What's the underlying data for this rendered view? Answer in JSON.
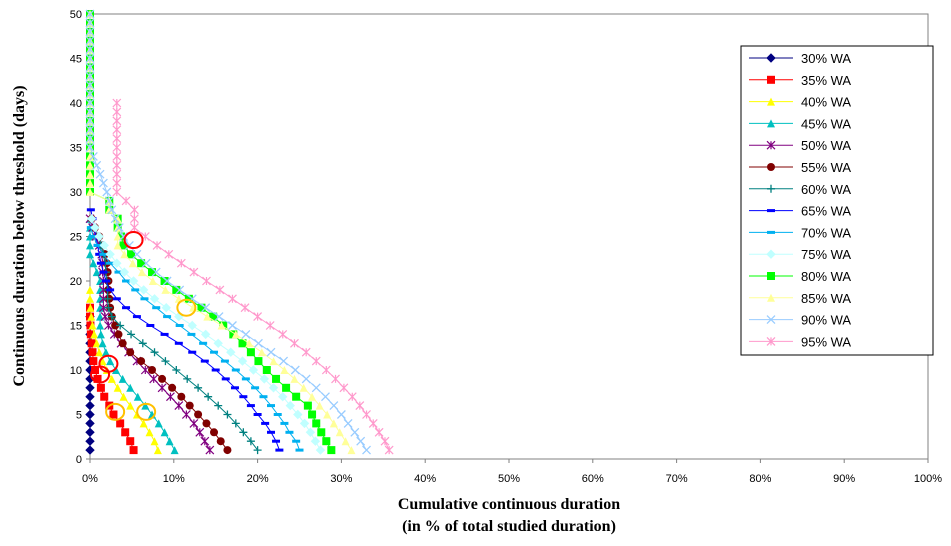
{
  "chart_data": {
    "type": "line",
    "title": "",
    "xlabel_line1": "Cumulative continuous duration",
    "xlabel_line2": "(in % of total studied duration)",
    "ylabel": "Continuous duration below threshold (days)",
    "xlim": [
      0,
      100
    ],
    "ylim": [
      0,
      50
    ],
    "x_ticks": [
      "0%",
      "10%",
      "20%",
      "30%",
      "40%",
      "50%",
      "60%",
      "70%",
      "80%",
      "90%",
      "100%"
    ],
    "y_ticks": [
      "0",
      "5",
      "10",
      "15",
      "20",
      "25",
      "30",
      "35",
      "40",
      "45",
      "50"
    ],
    "legend_position": "right",
    "grid": false,
    "series": [
      {
        "name": "30% WA",
        "color": "#000080",
        "marker": "diamond",
        "x": [
          0,
          0,
          0,
          0,
          0,
          0,
          0,
          0,
          0,
          0,
          0,
          0,
          0,
          0,
          0,
          0
        ],
        "y": [
          1,
          2,
          3,
          4,
          5,
          6,
          7,
          8,
          9,
          10,
          11,
          12,
          13,
          14,
          15,
          16
        ]
      },
      {
        "name": "35% WA",
        "color": "#ff0000",
        "marker": "square",
        "x": [
          5.2,
          4.8,
          4.2,
          3.6,
          2.8,
          2.3,
          1.7,
          1.3,
          0.9,
          0.6,
          0.4,
          0.3,
          0.2,
          0.1,
          0.05,
          0,
          0
        ],
        "y": [
          1,
          2,
          3,
          4,
          5,
          6,
          7,
          8,
          9,
          10,
          11,
          12,
          13,
          14,
          15,
          16,
          17
        ]
      },
      {
        "name": "40% WA",
        "color": "#ffff00",
        "marker": "triangle",
        "x": [
          8.1,
          7.7,
          7.1,
          6.4,
          5.6,
          4.8,
          4,
          3.3,
          2.6,
          2,
          1.5,
          1.1,
          0.8,
          0.5,
          0.3,
          0.15,
          0.05,
          0,
          0
        ],
        "y": [
          1,
          2,
          3,
          4,
          5,
          6,
          7,
          8,
          9,
          10,
          11,
          12,
          13,
          14,
          15,
          16,
          17,
          18,
          19
        ]
      },
      {
        "name": "45% WA",
        "color": "#00c0c0",
        "marker": "triangle",
        "x": [
          10.1,
          9.5,
          8.9,
          8.2,
          7.4,
          6.6,
          5.7,
          4.8,
          3.9,
          3.1,
          2.4,
          1.9,
          1.5,
          1.3,
          1.2,
          1.2,
          1.2,
          1.2,
          1.2,
          1.2,
          0.8,
          0.4,
          0,
          0,
          0,
          0,
          0
        ],
        "y": [
          1,
          2,
          3,
          4,
          5,
          6,
          7,
          8,
          9,
          10,
          11,
          12,
          13,
          14,
          15,
          16,
          17,
          18,
          19,
          20,
          21,
          22,
          23,
          24,
          25,
          26,
          27
        ]
      },
      {
        "name": "50% WA",
        "color": "#800080",
        "marker": "star",
        "x": [
          14.3,
          13.7,
          13.1,
          12.4,
          11.5,
          10.6,
          9.6,
          8.6,
          7.6,
          6.6,
          5.6,
          4.6,
          3.7,
          2.9,
          2.2,
          1.8,
          1.6,
          1.6,
          1.6,
          1.6,
          1.5,
          1.5,
          1.4,
          1.1,
          0.7,
          0.3,
          0
        ],
        "y": [
          1,
          2,
          3,
          4,
          5,
          6,
          7,
          8,
          9,
          10,
          11,
          12,
          13,
          14,
          15,
          16,
          17,
          18,
          19,
          20,
          21,
          22,
          23,
          24,
          25,
          26,
          27
        ]
      },
      {
        "name": "55% WA",
        "color": "#800000",
        "marker": "circle",
        "x": [
          16.4,
          15.6,
          14.8,
          13.9,
          12.9,
          11.9,
          10.9,
          9.8,
          8.6,
          7.4,
          6.1,
          4.8,
          3.9,
          3.4,
          3,
          2.6,
          2.4,
          2.3,
          2.2,
          2.2,
          2.1,
          2.0,
          1.8,
          1.5,
          1.1,
          0.6,
          0.2
        ],
        "y": [
          1,
          2,
          3,
          4,
          5,
          6,
          7,
          8,
          9,
          10,
          11,
          12,
          13,
          14,
          15,
          16,
          17,
          18,
          19,
          20,
          21,
          22,
          23,
          24,
          25,
          26,
          27
        ]
      },
      {
        "name": "60% WA",
        "color": "#008080",
        "marker": "plus",
        "x": [
          20,
          19.2,
          18.3,
          17.4,
          16.4,
          15.3,
          14.1,
          12.9,
          11.6,
          10.3,
          9,
          7.7,
          6.3,
          4.9,
          3.6,
          2.6,
          2.2,
          2.1,
          2.1,
          2,
          1.9,
          1.8,
          1.6,
          1.3,
          1.0,
          0.6
        ],
        "y": [
          1,
          2,
          3,
          4,
          5,
          6,
          7,
          8,
          9,
          10,
          11,
          12,
          13,
          14,
          15,
          16,
          17,
          18,
          19,
          20,
          21,
          22,
          23,
          24,
          25,
          26
        ]
      },
      {
        "name": "65% WA",
        "color": "#0000ff",
        "marker": "dash",
        "x": [
          22.6,
          22.2,
          21.6,
          20.9,
          20,
          19.2,
          18.3,
          17.3,
          16.2,
          15,
          13.7,
          12.2,
          10.6,
          8.9,
          7.2,
          5.6,
          4.3,
          3.2,
          2.4,
          1.9,
          1.6,
          1.3,
          1.1,
          0.9,
          0.7,
          0.5,
          0.3,
          0.1
        ],
        "y": [
          1,
          2,
          3,
          4,
          5,
          6,
          7,
          8,
          9,
          10,
          11,
          12,
          13,
          14,
          15,
          16,
          17,
          18,
          19,
          20,
          21,
          22,
          23,
          24,
          25,
          26,
          27,
          28
        ]
      },
      {
        "name": "70% WA",
        "color": "#00b0f0",
        "marker": "dash",
        "x": [
          25,
          24.6,
          23.8,
          23.2,
          22.4,
          21.6,
          20.7,
          19.7,
          18.6,
          17.4,
          16.1,
          14.8,
          13.5,
          12.1,
          10.7,
          9.2,
          7.9,
          6.5,
          5.4,
          4.3,
          3.4,
          2.4,
          1.6,
          0.9,
          0.4,
          0.1
        ],
        "y": [
          1,
          2,
          3,
          4,
          5,
          6,
          7,
          8,
          9,
          10,
          11,
          12,
          13,
          14,
          15,
          16,
          17,
          18,
          19,
          20,
          21,
          22,
          23,
          24,
          25,
          26
        ]
      },
      {
        "name": "75% WA",
        "color": "#c0ffff",
        "marker": "diamond",
        "x": [
          27.5,
          26.9,
          26.3,
          25.6,
          24.8,
          23.9,
          23,
          21.9,
          20.8,
          19.5,
          18.2,
          16.8,
          15.3,
          13.8,
          12.2,
          10.6,
          9.1,
          7.7,
          6.4,
          5.2,
          4.1,
          3.2,
          2.4,
          1.7,
          1.1,
          0.6,
          0.2
        ],
        "y": [
          1,
          2,
          3,
          4,
          5,
          6,
          7,
          8,
          9,
          10,
          11,
          12,
          13,
          14,
          15,
          16,
          17,
          18,
          19,
          20,
          21,
          22,
          23,
          24,
          25,
          26,
          27
        ]
      },
      {
        "name": "80% WA",
        "color": "#00ff00",
        "marker": "square",
        "x": [
          28.8,
          28.2,
          27.6,
          27,
          26.5,
          26,
          24.6,
          23.4,
          22.2,
          21.1,
          20.1,
          19.2,
          18.2,
          17.1,
          15.9,
          14.7,
          13.3,
          11.8,
          10.3,
          8.9,
          7.4,
          6.1,
          4.9,
          4,
          3.7,
          3.3,
          3.3,
          2.3,
          2.3,
          0,
          0,
          0,
          0,
          0,
          0,
          0,
          0,
          0,
          0,
          0,
          0,
          0,
          0,
          0,
          0,
          0,
          0,
          0,
          0,
          0
        ],
        "y": [
          1,
          2,
          3,
          4,
          5,
          6,
          7,
          8,
          9,
          10,
          11,
          12,
          13,
          14,
          15,
          16,
          17,
          18,
          19,
          20,
          21,
          22,
          23,
          24,
          25,
          26,
          27,
          28,
          29,
          30,
          31,
          32,
          33,
          34,
          35,
          36,
          37,
          38,
          39,
          40,
          41,
          42,
          43,
          44,
          45,
          46,
          47,
          48,
          49,
          50
        ]
      },
      {
        "name": "85% WA",
        "color": "#ffff99",
        "marker": "triangle",
        "x": [
          31.2,
          30.5,
          29.8,
          29.1,
          28.3,
          27.4,
          26.5,
          25.5,
          24.4,
          23.2,
          21.9,
          20.5,
          19,
          17.4,
          15.7,
          14,
          12.3,
          10.6,
          9,
          7.5,
          6.2,
          5.1,
          4.1,
          3.3,
          3.3,
          3.3,
          3.3,
          2.3,
          2.3,
          0,
          0,
          0,
          0,
          0,
          0,
          0,
          0,
          0,
          0,
          0,
          0,
          0,
          0,
          0,
          0,
          0,
          0,
          0,
          0,
          0
        ],
        "y": [
          1,
          2,
          3,
          4,
          5,
          6,
          7,
          8,
          9,
          10,
          11,
          12,
          13,
          14,
          15,
          16,
          17,
          18,
          19,
          20,
          21,
          22,
          23,
          24,
          25,
          26,
          27,
          28,
          29,
          30,
          31,
          32,
          33,
          34,
          35,
          36,
          37,
          38,
          39,
          40,
          41,
          42,
          43,
          44,
          45,
          46,
          47,
          48,
          49,
          50
        ]
      },
      {
        "name": "90% WA",
        "color": "#99ccff",
        "marker": "x",
        "x": [
          33,
          32.3,
          31.6,
          30.8,
          30,
          29.1,
          28.1,
          27,
          25.8,
          24.5,
          23.1,
          21.6,
          20.1,
          18.6,
          17,
          15.4,
          13.8,
          12.2,
          10.7,
          9.2,
          7.9,
          6.7,
          5.6,
          4.7,
          4,
          3.5,
          3,
          2.6,
          2.3,
          2,
          1.6,
          1.2,
          0.8,
          0.4,
          0,
          0,
          0,
          0,
          0,
          0,
          0,
          0,
          0,
          0,
          0,
          0,
          0,
          0,
          0,
          0
        ],
        "y": [
          1,
          2,
          3,
          4,
          5,
          6,
          7,
          8,
          9,
          10,
          11,
          12,
          13,
          14,
          15,
          16,
          17,
          18,
          19,
          20,
          21,
          22,
          23,
          24,
          25,
          26,
          27,
          28,
          29,
          30,
          31,
          32,
          33,
          34,
          35,
          36,
          37,
          38,
          39,
          40,
          41,
          42,
          43,
          44,
          45,
          46,
          47,
          48,
          49,
          50
        ]
      },
      {
        "name": "95% WA",
        "color": "#ff99cc",
        "marker": "star",
        "x": [
          35.7,
          35.2,
          34.5,
          33.8,
          33,
          32.2,
          31.3,
          30.3,
          29.3,
          28.2,
          27,
          25.8,
          24.4,
          23,
          21.5,
          20,
          18.5,
          17,
          15.5,
          13.9,
          12.4,
          10.9,
          9.4,
          8,
          6.6,
          5.3,
          5.3,
          5.3,
          4.3,
          3.2,
          3.2,
          3.2,
          3.2,
          3.2,
          3.2,
          3.2,
          3.2,
          3.2,
          3.2,
          3.2
        ],
        "y": [
          1,
          2,
          3,
          4,
          5,
          6,
          7,
          8,
          9,
          10,
          11,
          12,
          13,
          14,
          15,
          16,
          17,
          18,
          19,
          20,
          21,
          22,
          23,
          24,
          25,
          26,
          27,
          28,
          29,
          30,
          31,
          32,
          33,
          34,
          35,
          36,
          37,
          38,
          39,
          40
        ]
      }
    ],
    "highlight_circles": [
      {
        "x": 1.2,
        "y": 9.5,
        "color": "#ff0000"
      },
      {
        "x": 2.2,
        "y": 10.7,
        "color": "#ff0000"
      },
      {
        "x": 3,
        "y": 5.3,
        "color": "#ffc000"
      },
      {
        "x": 6.7,
        "y": 5.3,
        "color": "#ffc000"
      },
      {
        "x": 11.5,
        "y": 17,
        "color": "#ffc000"
      },
      {
        "x": 5.2,
        "y": 24.6,
        "color": "#ff0000"
      }
    ]
  }
}
